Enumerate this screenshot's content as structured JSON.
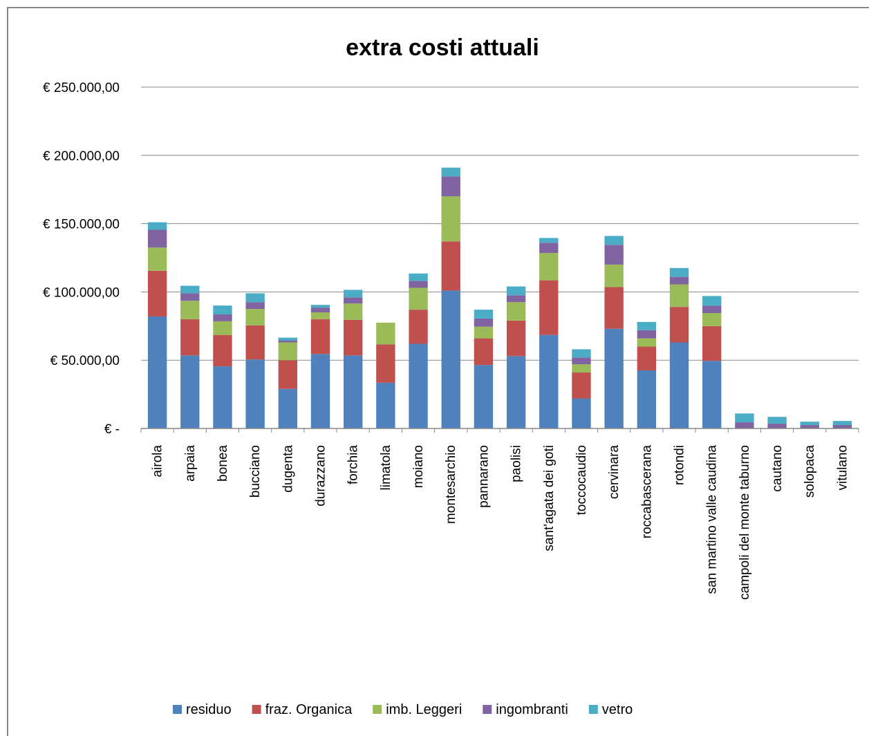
{
  "chart_data": {
    "type": "bar",
    "stacked": true,
    "title": "extra costi attuali",
    "xlabel": "",
    "ylabel": "",
    "ylim": [
      0,
      250000
    ],
    "y_ticks": [
      0,
      50000,
      100000,
      150000,
      200000,
      250000
    ],
    "y_tick_labels": [
      "€ -",
      "€ 50.000,00",
      "€ 100.000,00",
      "€ 150.000,00",
      "€ 200.000,00",
      "€ 250.000,00"
    ],
    "grid": true,
    "legend_position": "bottom",
    "categories": [
      "airola",
      "arpaia",
      "bonea",
      "bucciano",
      "dugenta",
      "durazzano",
      "forchia",
      "limatola",
      "moiano",
      "montesarchio",
      "pannarano",
      "paolisi",
      "sant'agata dei goti",
      "toccocaudio",
      "cervinara",
      "roccabascerana",
      "rotondi",
      "san martino valle caudina",
      "campoli del monte taburno",
      "cautano",
      "solopaca",
      "vitulano"
    ],
    "series": [
      {
        "name": "residuo",
        "color": "#4F81BD",
        "values": [
          82000,
          53500,
          45500,
          50500,
          29000,
          54500,
          53500,
          33500,
          62000,
          101000,
          46500,
          53000,
          68500,
          22000,
          73000,
          42500,
          63000,
          49500,
          0,
          0,
          0,
          0
        ]
      },
      {
        "name": "fraz. Organica",
        "color": "#C0504D",
        "values": [
          33500,
          26500,
          23000,
          25000,
          21000,
          25500,
          26000,
          28000,
          25000,
          36000,
          19500,
          26000,
          40000,
          19000,
          30500,
          17500,
          26000,
          25500,
          0,
          0,
          0,
          0
        ]
      },
      {
        "name": "imb. Leggeri",
        "color": "#9BBB59",
        "values": [
          17000,
          13500,
          10000,
          12000,
          13000,
          5000,
          12000,
          16000,
          16000,
          33000,
          8500,
          13500,
          20000,
          6000,
          16500,
          6000,
          16500,
          9500,
          0,
          0,
          0,
          0
        ]
      },
      {
        "name": "ingombranti",
        "color": "#8064A2",
        "values": [
          13000,
          5500,
          5000,
          5000,
          1500,
          3500,
          4500,
          0,
          5000,
          14500,
          6000,
          5000,
          7500,
          5000,
          14500,
          6000,
          5500,
          5500,
          4500,
          3500,
          2500,
          2500
        ]
      },
      {
        "name": "vetro",
        "color": "#4BACC6",
        "values": [
          5500,
          5500,
          6500,
          6500,
          2000,
          2000,
          5500,
          0,
          5500,
          6500,
          6500,
          6500,
          3500,
          6000,
          6500,
          6000,
          6500,
          7000,
          6500,
          5000,
          2500,
          3000
        ]
      }
    ]
  }
}
